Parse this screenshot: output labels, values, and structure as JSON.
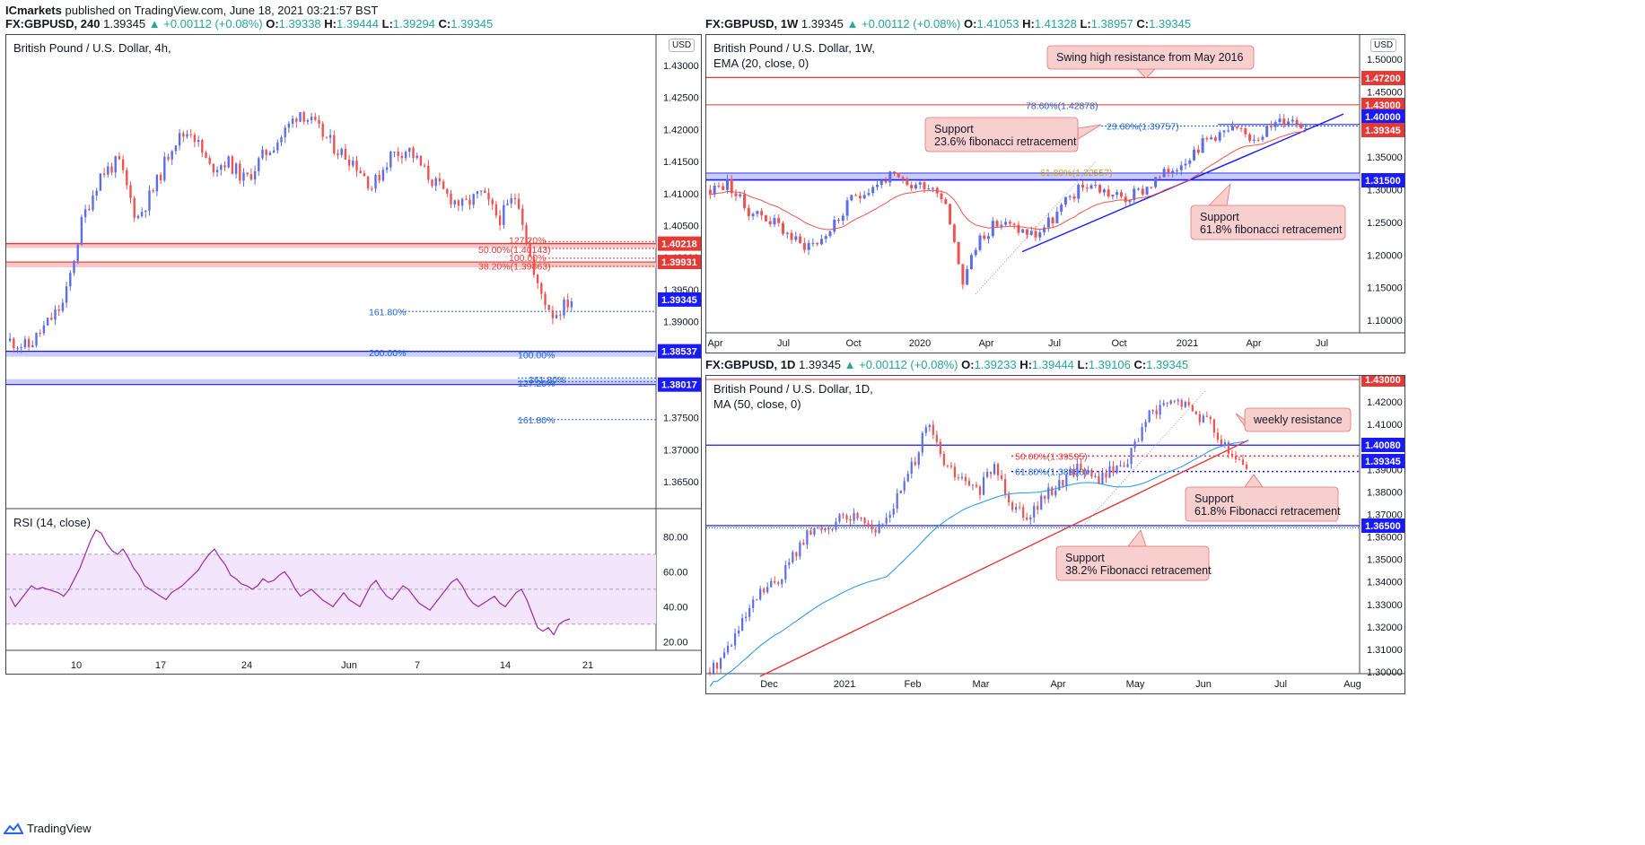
{
  "header": {
    "author": "ICmarkets",
    "published_text": " published on TradingView.com, June 18, 2021 03:21:57 BST"
  },
  "footer": {
    "brand": "TradingView",
    "logo_icon": "tradingview-logo-icon"
  },
  "colors": {
    "up": "#5b6ee8",
    "down": "#ef5350",
    "support_blue": "#1a1aff",
    "resistance_red": "#e53935",
    "rsi_line": "#9c27b0",
    "ma_line": "#2196f3",
    "callout_bg": "#f8cfcf"
  },
  "chart_4h": {
    "ohlc": {
      "symbol": "FX:GBPUSD, 240",
      "last": "1.39345",
      "change": "+0.00112 (+0.08%)",
      "o": "1.39338",
      "h": "1.39444",
      "l": "1.39294",
      "c": "1.39345"
    },
    "legend": "British Pound / U.S. Dollar, 4h,",
    "currency": "USD",
    "price_ticks": [
      "1.43000",
      "1.42500",
      "1.42000",
      "1.41500",
      "1.41000",
      "1.40500",
      "1.40000",
      "1.39500",
      "1.39000",
      "1.38500",
      "1.38000",
      "1.37500",
      "1.37000",
      "1.36500"
    ],
    "time_ticks": [
      "10",
      "17",
      "24",
      "Jun",
      "7",
      "14",
      "21"
    ],
    "price_tags": [
      {
        "value": "1.40218",
        "color": "#e53935"
      },
      {
        "value": "1.39931",
        "color": "#e53935"
      },
      {
        "value": "1.39345",
        "color": "#1a1aff"
      },
      {
        "value": "1.38537",
        "color": "#1a1aff"
      },
      {
        "value": "1.38017",
        "color": "#1a1aff"
      }
    ],
    "fib_labels": [
      {
        "text": "127.20%",
        "color": "#e53935"
      },
      {
        "text": "50.00%(1.40143)",
        "color": "#e53935"
      },
      {
        "text": "100.00%",
        "color": "#e53935"
      },
      {
        "text": "38.20%(1.39863)",
        "color": "#e53935"
      },
      {
        "text": "161.80%",
        "color": "#1e63d6"
      },
      {
        "text": "200.00%",
        "color": "#1e63d6"
      },
      {
        "text": "100.00%",
        "color": "#1e63d6"
      },
      {
        "text": "161.80%",
        "color": "#1e63d6"
      },
      {
        "text": "127.20%",
        "color": "#1e63d6"
      },
      {
        "text": "161.80%",
        "color": "#1e63d6"
      }
    ],
    "rsi": {
      "legend": "RSI (14, close)",
      "ticks": [
        "80.00",
        "60.00",
        "40.00",
        "20.00"
      ],
      "values": [
        46,
        40,
        44,
        48,
        52,
        50,
        51,
        50,
        49,
        48,
        46,
        50,
        56,
        62,
        70,
        78,
        84,
        82,
        76,
        72,
        70,
        73,
        68,
        62,
        58,
        52,
        50,
        48,
        46,
        44,
        48,
        50,
        52,
        55,
        58,
        61,
        66,
        70,
        73,
        68,
        64,
        58,
        56,
        53,
        52,
        50,
        52,
        56,
        54,
        55,
        58,
        60,
        56,
        50,
        46,
        48,
        50,
        47,
        44,
        42,
        40,
        44,
        48,
        44,
        42,
        40,
        46,
        52,
        55,
        50,
        46,
        44,
        48,
        52,
        50,
        46,
        42,
        40,
        38,
        42,
        46,
        50,
        54,
        56,
        52,
        46,
        42,
        40,
        42,
        44,
        46,
        42,
        40,
        44,
        48,
        50,
        44,
        36,
        28,
        26,
        28,
        24,
        30,
        32,
        33
      ]
    }
  },
  "chart_1w": {
    "ohlc": {
      "symbol": "FX:GBPUSD, 1W",
      "last": "1.39345",
      "change": "+0.00112 (+0.08%)",
      "o": "1.41053",
      "h": "1.41328",
      "l": "1.38957",
      "c": "1.39345"
    },
    "legend": "British Pound / U.S. Dollar, 1W,",
    "legend2": "EMA (20, close, 0)",
    "currency": "USD",
    "price_ticks": [
      "1.50000",
      "1.45000",
      "1.40000",
      "1.35000",
      "1.30000",
      "1.25000",
      "1.20000",
      "1.15000",
      "1.10000"
    ],
    "time_ticks": [
      "Apr",
      "Jul",
      "Oct",
      "2020",
      "Apr",
      "Jul",
      "Oct",
      "2021",
      "Apr",
      "Jul"
    ],
    "price_tags": [
      {
        "value": "1.47200",
        "color": "#e53935"
      },
      {
        "value": "1.43000",
        "color": "#e53935"
      },
      {
        "value": "1.40000",
        "color": "#1a1aff"
      },
      {
        "value": "1.39345",
        "color": "#e53935"
      },
      {
        "value": "1.31500",
        "color": "#1a1aff"
      }
    ],
    "fib_labels": [
      {
        "text": "78.60%(1.42878)",
        "color": "#1e63d6"
      },
      {
        "text": "23.60%(1.39757)",
        "color": "#1e63d6"
      },
      {
        "text": "61.80%(1.32557)",
        "color": "#d4a017"
      }
    ],
    "callouts": [
      {
        "text": "Swing high resistance from May 2016"
      },
      {
        "line1": "Support",
        "line2": "23.6% fibonacci retracement"
      },
      {
        "line1": "Support",
        "line2": "61.8% fibonacci retracement"
      }
    ]
  },
  "chart_1d": {
    "ohlc": {
      "symbol": "FX:GBPUSD, 1D",
      "last": "1.39345",
      "change": "+0.00112 (+0.08%)",
      "o": "1.39233",
      "h": "1.39444",
      "l": "1.39106",
      "c": "1.39345"
    },
    "legend": "British Pound / U.S. Dollar, 1D,",
    "legend2": "MA (50, close, 0)",
    "price_ticks": [
      "1.43000",
      "1.42000",
      "1.41000",
      "1.40000",
      "1.39000",
      "1.38000",
      "1.37000",
      "1.36000",
      "1.35000",
      "1.34000",
      "1.33000",
      "1.32000",
      "1.31000",
      "1.30000"
    ],
    "time_ticks": [
      "Dec",
      "2021",
      "Feb",
      "Mar",
      "Apr",
      "May",
      "Jun",
      "Jul",
      "Aug"
    ],
    "price_tags": [
      {
        "value": "1.43000",
        "color": "#e53935"
      },
      {
        "value": "1.40080",
        "color": "#1a1aff"
      },
      {
        "value": "1.39345",
        "color": "#1a1aff"
      },
      {
        "value": "1.36500",
        "color": "#1a1aff"
      }
    ],
    "fib_labels": [
      {
        "text": "50.00%(1.39595)",
        "color": "#e53935"
      },
      {
        "text": "61.80%(1.38908)",
        "color": "#1e63d6"
      }
    ],
    "callouts": [
      {
        "text": "weekly resistance"
      },
      {
        "line1": "Support",
        "line2": "61.8% Fibonacci retracement"
      },
      {
        "line1": "Support",
        "line2": "38.2% Fibonacci retracement"
      }
    ]
  }
}
